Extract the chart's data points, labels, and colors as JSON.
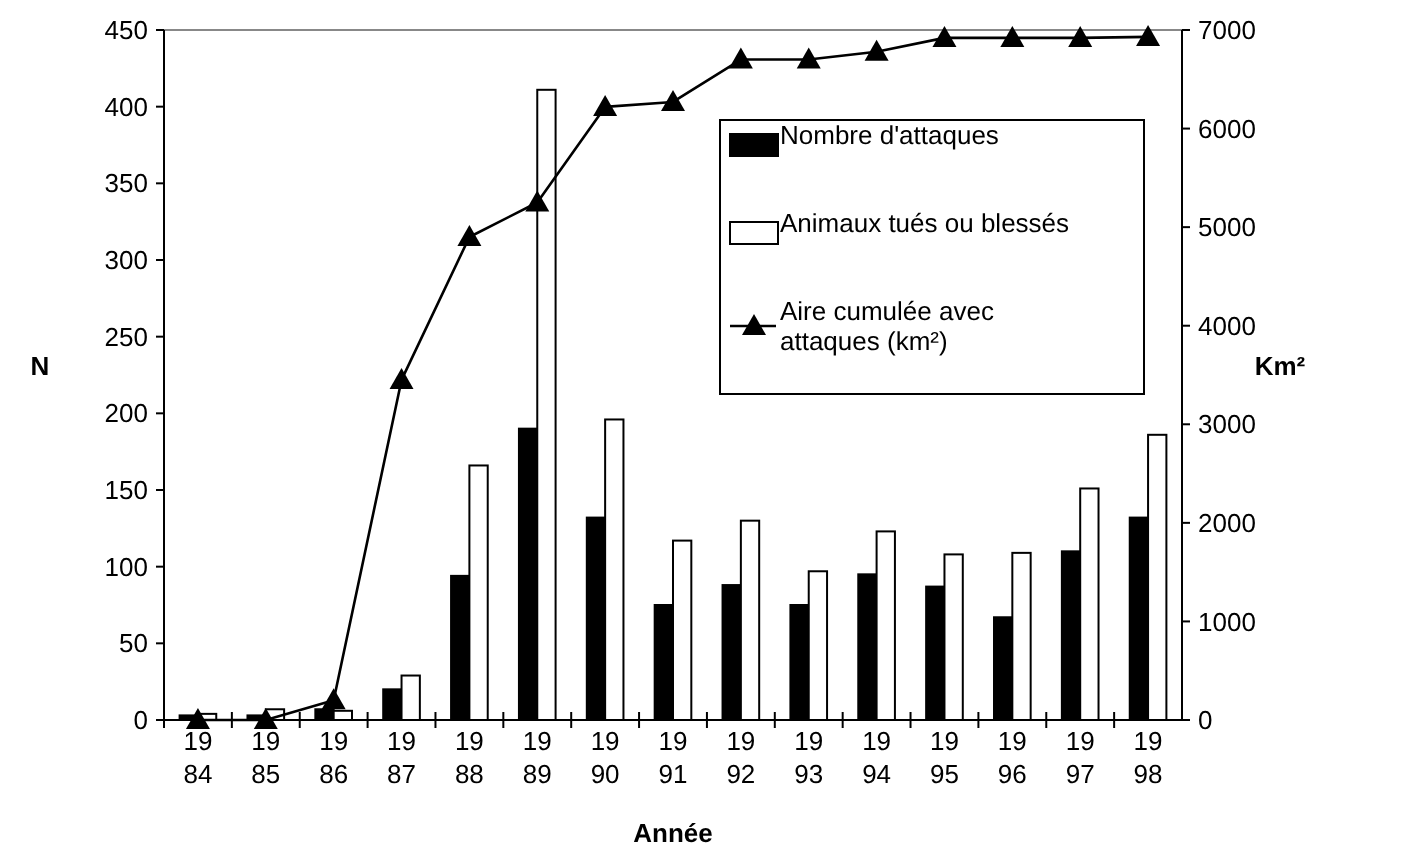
{
  "chart_data": {
    "type": "bar",
    "xlabel": "Année",
    "ylabel": "N",
    "y2label": "Km²",
    "categories": [
      "1984",
      "1985",
      "1986",
      "1987",
      "1988",
      "1989",
      "1990",
      "1991",
      "1992",
      "1993",
      "1994",
      "1995",
      "1996",
      "1997",
      "1998"
    ],
    "series": [
      {
        "name": "Nombre d'attaques",
        "color": "#000000",
        "values": [
          3,
          3,
          7,
          20,
          94,
          190,
          132,
          75,
          88,
          75,
          95,
          87,
          67,
          110,
          132
        ]
      },
      {
        "name": "Animaux tués ou blessés",
        "color": "#ffffff",
        "values": [
          4,
          7,
          6,
          29,
          166,
          411,
          196,
          117,
          130,
          97,
          123,
          108,
          109,
          151,
          186
        ]
      },
      {
        "name": "Aire cumulée avec attaques (km²)",
        "type": "line",
        "axis": "y2",
        "color": "#000000",
        "marker": "triangle",
        "values": [
          0,
          0,
          200,
          3450,
          4900,
          5250,
          6220,
          6270,
          6700,
          6700,
          6780,
          6920,
          6920,
          6920,
          6930
        ]
      }
    ],
    "ylim": [
      0,
      450
    ],
    "yticks": [
      0,
      50,
      100,
      150,
      200,
      250,
      300,
      350,
      400,
      450
    ],
    "y2lim": [
      0,
      7000
    ],
    "y2ticks": [
      0,
      1000,
      2000,
      3000,
      4000,
      5000,
      6000,
      7000
    ],
    "grid": false,
    "legend": "top right"
  }
}
